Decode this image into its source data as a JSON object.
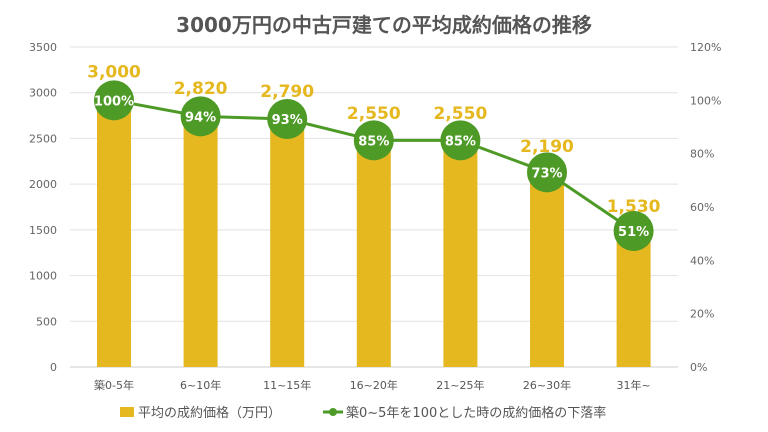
{
  "chart_data": {
    "type": "bar+line",
    "title": "3000万円の中古戸建ての平均成約価格の推移",
    "categories": [
      "築0-5年",
      "6~10年",
      "11~15年",
      "16~20年",
      "21~25年",
      "26~30年",
      "31年~"
    ],
    "series": [
      {
        "name": "平均の成約価格（万円）",
        "type": "bar",
        "axis": "left",
        "values": [
          3000,
          2820,
          2790,
          2550,
          2550,
          2190,
          1530
        ],
        "labels": [
          "3,000",
          "2,820",
          "2,790",
          "2,550",
          "2,550",
          "2,190",
          "1,530"
        ],
        "color": "#E6B820"
      },
      {
        "name": "築0~5年を100とした時の成約価格の下落率",
        "type": "line",
        "axis": "right",
        "values": [
          100,
          94,
          93,
          85,
          85,
          73,
          51
        ],
        "labels": [
          "100%",
          "94%",
          "93%",
          "85%",
          "85%",
          "73%",
          "51%"
        ],
        "color": "#4E9A26"
      }
    ],
    "y_left": {
      "range": [
        0,
        3500
      ],
      "ticks": [
        "0",
        "500",
        "1000",
        "1500",
        "2000",
        "2500",
        "3000",
        "3500"
      ]
    },
    "y_right": {
      "range": [
        0,
        120
      ],
      "ticks": [
        "0%",
        "20%",
        "40%",
        "60%",
        "80%",
        "100%",
        "120%"
      ]
    },
    "grid": true,
    "legend": "bottom"
  }
}
